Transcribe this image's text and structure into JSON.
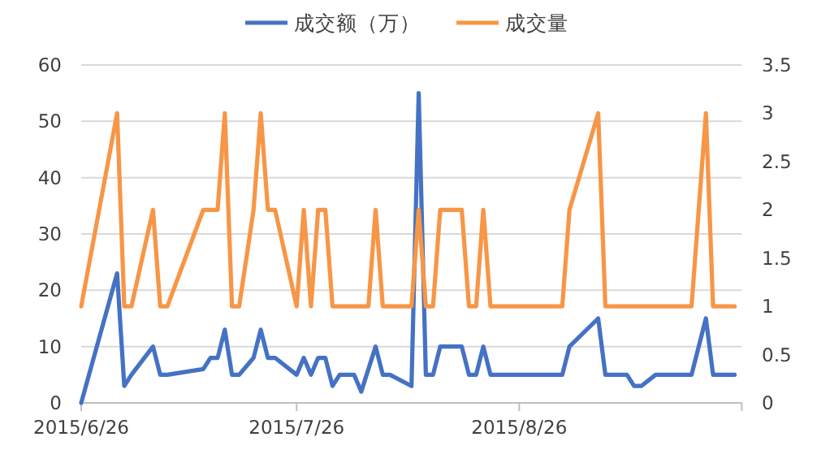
{
  "chart_data": {
    "type": "line",
    "x": [
      "2015-06-26",
      "2015-07-01",
      "2015-07-02",
      "2015-07-03",
      "2015-07-06",
      "2015-07-07",
      "2015-07-08",
      "2015-07-13",
      "2015-07-14",
      "2015-07-15",
      "2015-07-16",
      "2015-07-17",
      "2015-07-18",
      "2015-07-20",
      "2015-07-21",
      "2015-07-22",
      "2015-07-23",
      "2015-07-26",
      "2015-07-27",
      "2015-07-28",
      "2015-07-29",
      "2015-07-30",
      "2015-07-31",
      "2015-08-01",
      "2015-08-03",
      "2015-08-04",
      "2015-08-05",
      "2015-08-06",
      "2015-08-07",
      "2015-08-08",
      "2015-08-11",
      "2015-08-12",
      "2015-08-13",
      "2015-08-14",
      "2015-08-15",
      "2015-08-18",
      "2015-08-19",
      "2015-08-20",
      "2015-08-21",
      "2015-08-22",
      "2015-09-01",
      "2015-09-02",
      "2015-09-06",
      "2015-09-07",
      "2015-09-10",
      "2015-09-11",
      "2015-09-12",
      "2015-09-14",
      "2015-09-19",
      "2015-09-21",
      "2015-09-22",
      "2015-09-25"
    ],
    "series": [
      {
        "name": "成交额（万）",
        "color": "#4472c4",
        "values": [
          0,
          23,
          3,
          5,
          10,
          5,
          5,
          6,
          8,
          8,
          13,
          5,
          5,
          8,
          13,
          8,
          8,
          5,
          8,
          5,
          8,
          8,
          3,
          5,
          5,
          2,
          6,
          10,
          5,
          5,
          3,
          55,
          5,
          5,
          10,
          10,
          5,
          5,
          10,
          5,
          5,
          10,
          15,
          5,
          5,
          3,
          3,
          5,
          5,
          15,
          5,
          5
        ]
      },
      {
        "name": "成交量",
        "color": "#f79646",
        "axis": "y2",
        "values": [
          1,
          3,
          1,
          1,
          2,
          1,
          1,
          2,
          2,
          2,
          3,
          1,
          1,
          2,
          3,
          2,
          2,
          1,
          2,
          1,
          2,
          2,
          1,
          1,
          1,
          1,
          1,
          2,
          1,
          1,
          1,
          2,
          1,
          1,
          2,
          2,
          1,
          1,
          2,
          1,
          1,
          2,
          3,
          1,
          1,
          1,
          1,
          1,
          1,
          3,
          1,
          1
        ]
      }
    ],
    "xlim": [
      "2015-06-26",
      "2015-09-26"
    ],
    "xticks": [
      {
        "value": "2015-06-26",
        "label": "2015/6/26"
      },
      {
        "value": "2015-07-26",
        "label": "2015/7/26"
      },
      {
        "value": "2015-08-26",
        "label": "2015/8/26"
      },
      {
        "value": "2015-09-26",
        "label": null
      }
    ],
    "ylim": [
      0,
      60
    ],
    "yticks": [
      0,
      10,
      20,
      30,
      40,
      50,
      60
    ],
    "y2lim": [
      0,
      3.5
    ],
    "y2ticks": [
      0,
      0.5,
      1,
      1.5,
      2,
      2.5,
      3,
      3.5
    ],
    "grid": "y",
    "legend": "top"
  }
}
